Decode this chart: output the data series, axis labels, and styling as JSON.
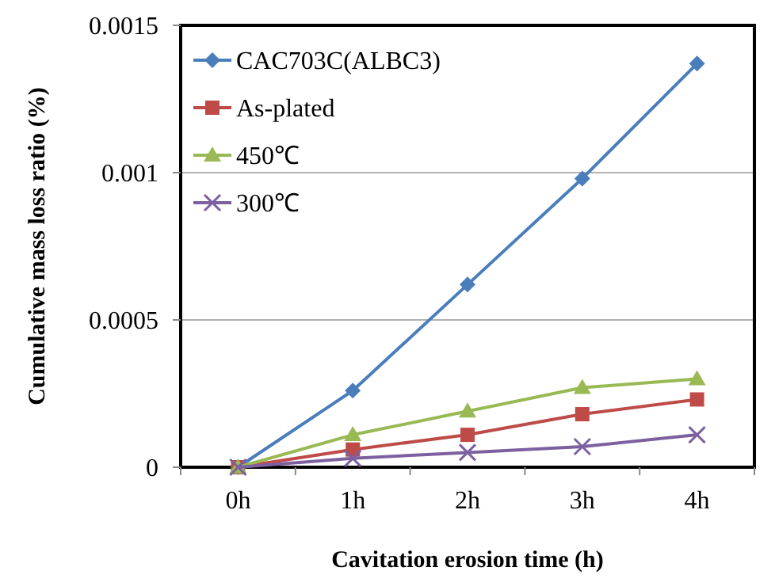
{
  "chart_data": {
    "type": "line",
    "xlabel": "Cavitation erosion time (h)",
    "ylabel": "Cumulative mass loss ratio (%)",
    "categories": [
      "0h",
      "1h",
      "2h",
      "3h",
      "4h"
    ],
    "series": [
      {
        "name": "CAC703C(ALBC3)",
        "color": "#4a7ebb",
        "marker": "diamond",
        "values": [
          0,
          0.00026,
          0.00062,
          0.00098,
          0.00137
        ]
      },
      {
        "name": "As-plated",
        "color": "#be4b48",
        "marker": "square",
        "values": [
          0,
          6e-05,
          0.00011,
          0.00018,
          0.00023
        ]
      },
      {
        "name": "450℃",
        "color": "#98b954",
        "marker": "triangle",
        "values": [
          0,
          0.00011,
          0.00019,
          0.00027,
          0.0003
        ]
      },
      {
        "name": "300℃",
        "color": "#7d60a0",
        "marker": "cross",
        "values": [
          0,
          3e-05,
          5e-05,
          7e-05,
          0.00011
        ]
      }
    ],
    "ylim": [
      0,
      0.0015
    ],
    "yticks": [
      0,
      0.0005,
      0.001,
      0.0015
    ],
    "grid": "y",
    "legend": "top left"
  }
}
